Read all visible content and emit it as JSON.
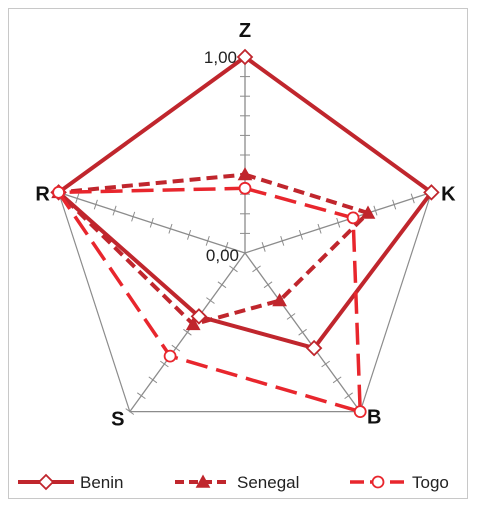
{
  "chart_data": {
    "type": "radar",
    "axes": [
      "Z",
      "K",
      "B",
      "S",
      "R"
    ],
    "range": [
      0,
      1
    ],
    "tick_labels": [
      "0,00",
      "1,00"
    ],
    "tick_step": 0.1,
    "grid": "spokes with tick marks; outer pentagon frame",
    "legend_position": "bottom",
    "series": [
      {
        "name": "Benin",
        "values": [
          1.0,
          1.0,
          0.6,
          0.4,
          1.0
        ],
        "color": "#C0262D",
        "line": "solid",
        "marker": "diamond"
      },
      {
        "name": "Senegal",
        "values": [
          0.4,
          0.66,
          0.3,
          0.45,
          1.0
        ],
        "color": "#C0262D",
        "line": "dashed",
        "marker": "triangle"
      },
      {
        "name": "Togo",
        "values": [
          0.33,
          0.58,
          1.0,
          0.65,
          1.0
        ],
        "color": "#E8262D",
        "line": "long-dash",
        "marker": "circle"
      }
    ]
  }
}
